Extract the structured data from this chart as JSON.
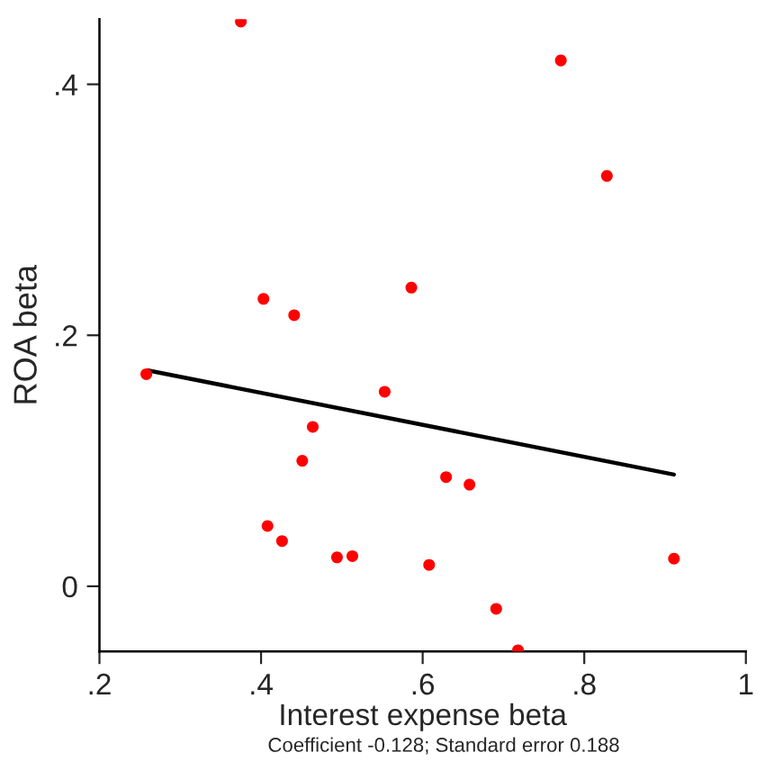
{
  "chart_data": {
    "type": "scatter",
    "xlabel": "Interest expense beta",
    "ylabel": "ROA beta",
    "annotations": [
      "Coefficient -0.128; Standard error 0.188"
    ],
    "series": [
      {
        "color": "#ff0000",
        "marker": "circle",
        "x": [
          0.375,
          0.771,
          0.828,
          0.403,
          0.441,
          0.586,
          0.258,
          0.553,
          0.464,
          0.451,
          0.629,
          0.658,
          0.408,
          0.426,
          0.494,
          0.513,
          0.608,
          0.911,
          0.691,
          0.718
        ],
        "values": [
          0.45,
          0.419,
          0.327,
          0.229,
          0.216,
          0.238,
          0.169,
          0.155,
          0.127,
          0.1,
          0.087,
          0.081,
          0.048,
          0.036,
          0.023,
          0.024,
          0.017,
          0.022,
          -0.018,
          -0.051
        ]
      },
      {
        "type": "line",
        "color": "#000000",
        "x": [
          0.26,
          0.911
        ],
        "values": [
          0.172,
          0.089
        ]
      }
    ],
    "xlim": [
      0.2,
      1
    ],
    "ylim": [
      -0.052,
      0.452
    ],
    "xticks": [
      {
        "value": 0.2,
        "label": ".2"
      },
      {
        "value": 0.4,
        "label": ".4"
      },
      {
        "value": 0.6,
        "label": ".6"
      },
      {
        "value": 0.8,
        "label": ".8"
      },
      1
    ],
    "yticks": [
      0,
      {
        "value": 0.2,
        "label": ".2"
      },
      {
        "value": 0.4,
        "label": ".4"
      }
    ],
    "grid": false,
    "legend": false
  }
}
